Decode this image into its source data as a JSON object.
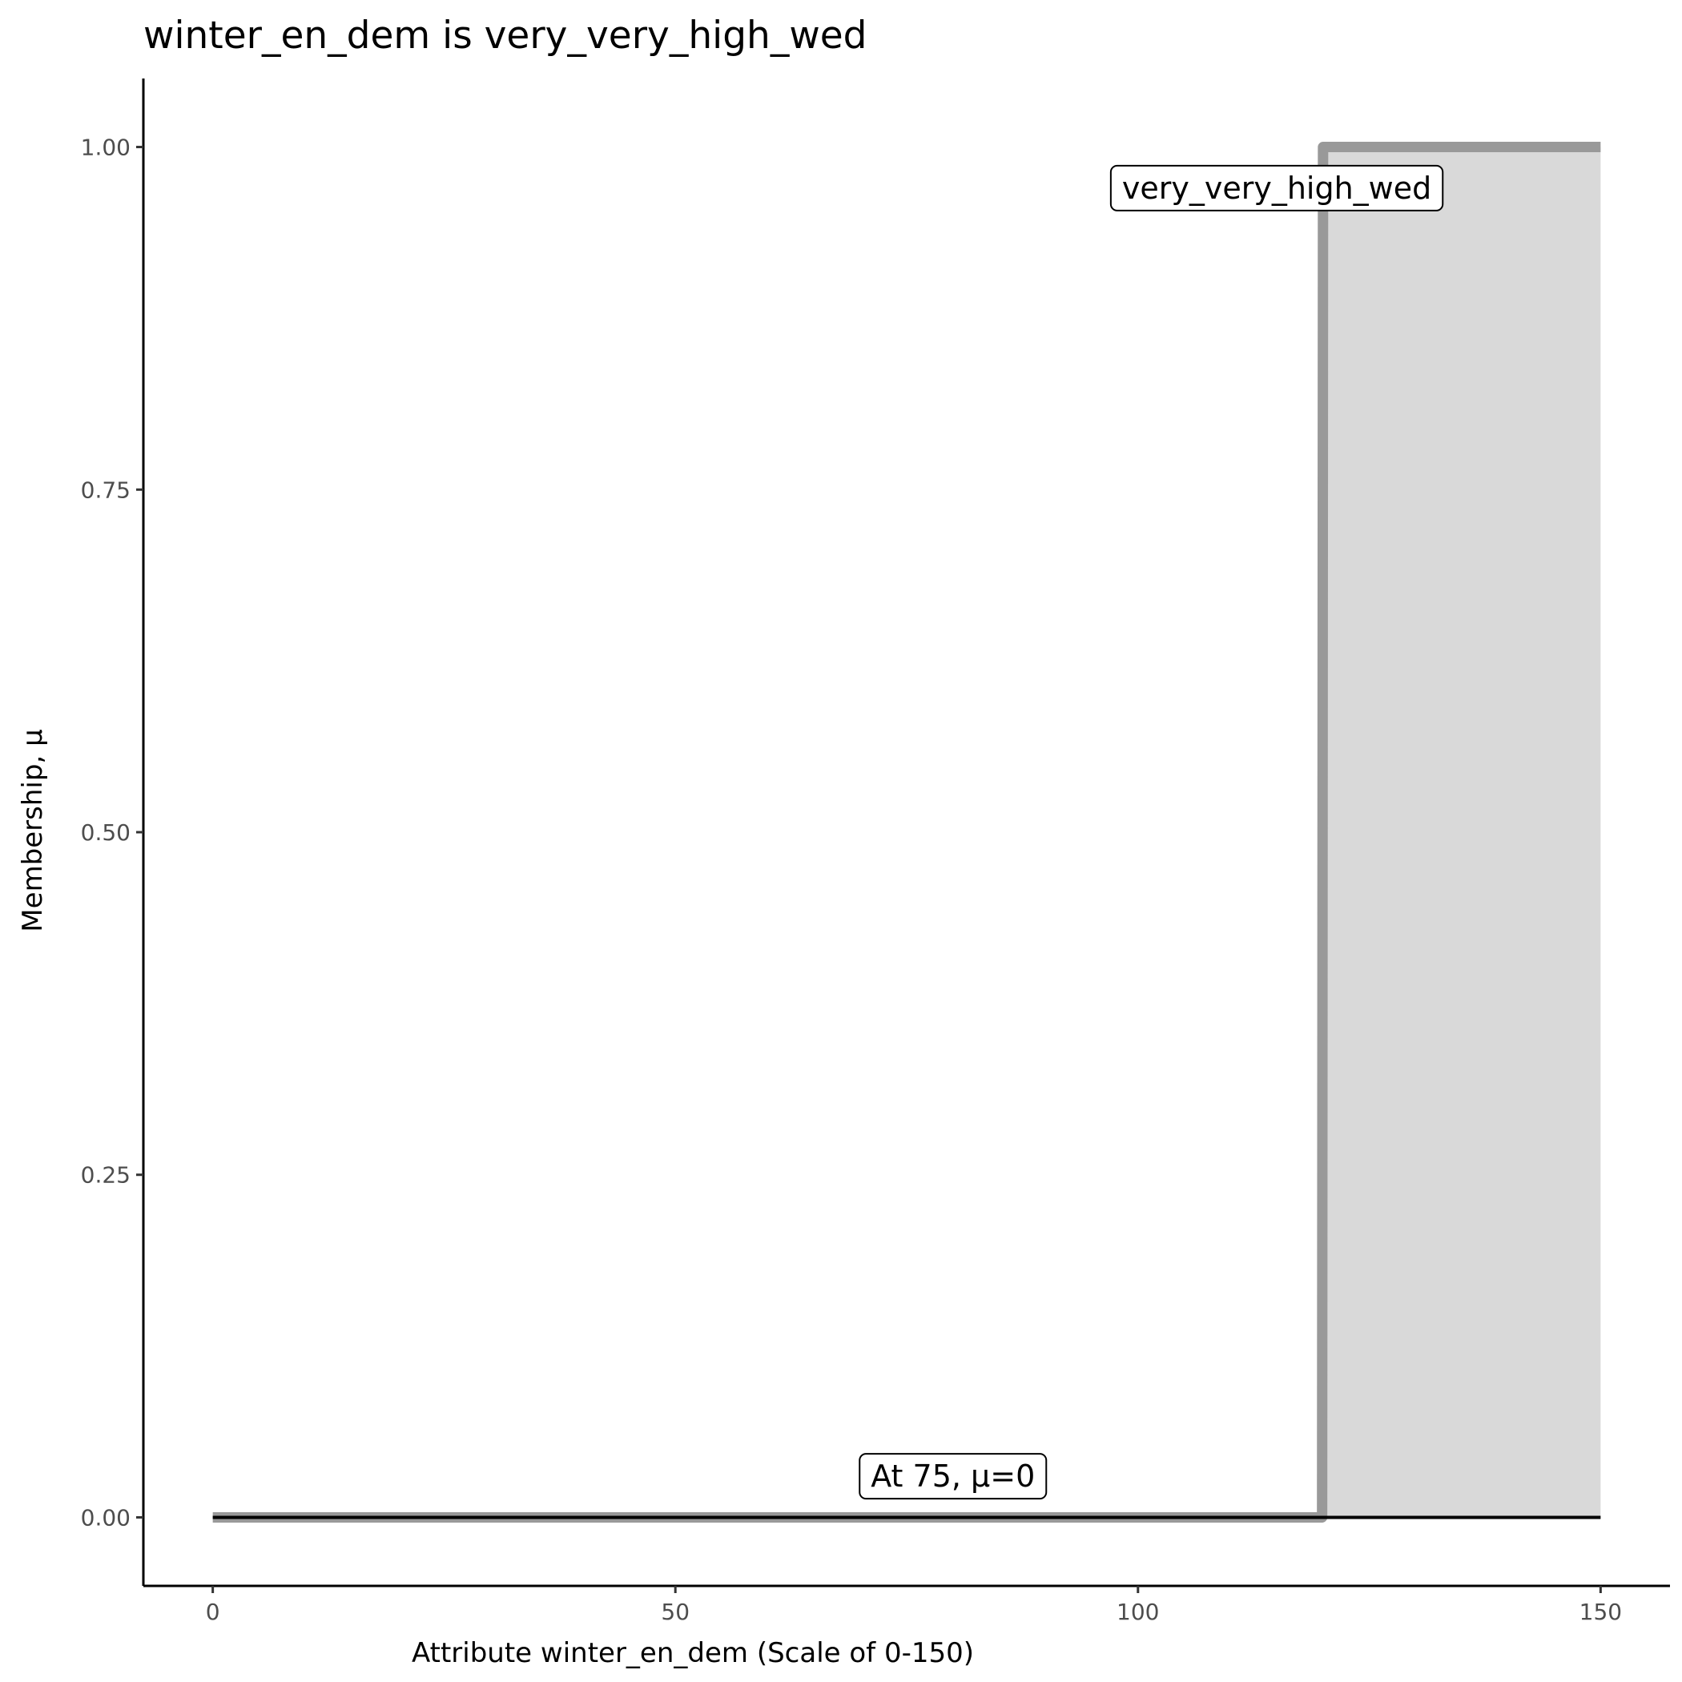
{
  "chart_data": {
    "type": "area",
    "title": "winter_en_dem is very_very_high_wed",
    "xlabel": "Attribute winter_en_dem (Scale of 0-150)",
    "ylabel": "Membership, μ",
    "xlim": [
      -7.5,
      157.5
    ],
    "ylim": [
      -0.05,
      1.05
    ],
    "xticks": [
      0,
      50,
      100,
      150
    ],
    "xtick_labels": [
      "0",
      "50",
      "100",
      "150"
    ],
    "yticks": [
      0,
      0.25,
      0.5,
      0.75,
      1
    ],
    "ytick_labels": [
      "0.00",
      "0.25",
      "0.50",
      "0.75",
      "1.00"
    ],
    "grid": false,
    "series": [
      {
        "name": "very_very_high_wed",
        "x": [
          0,
          119.9,
          120,
          150
        ],
        "y": [
          0,
          0,
          1,
          1
        ],
        "color": "#999999",
        "fill": "#d9d9d9"
      }
    ],
    "baseline": {
      "x": [
        0,
        150
      ],
      "y": [
        0,
        0
      ],
      "color": "#000000"
    },
    "annotations": [
      {
        "text": "very_very_high_wed",
        "x": 115,
        "y": 0.97
      },
      {
        "text": "At 75, μ=0",
        "x": 80,
        "y": 0.03
      }
    ]
  }
}
